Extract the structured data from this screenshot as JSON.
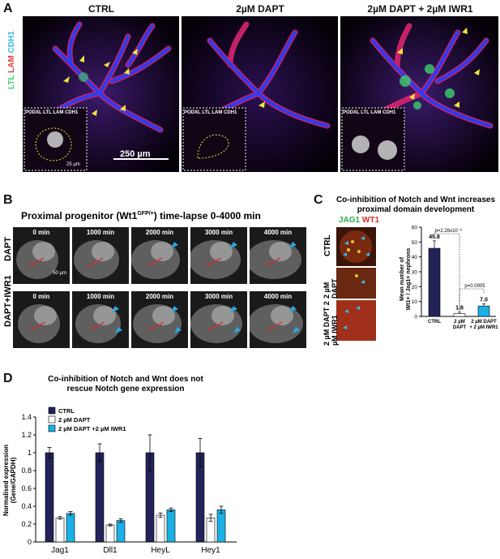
{
  "panel_a": {
    "letter": "A",
    "titles": [
      "CTRL",
      "2µM DAPT",
      "2µM DAPT + 2µM IWR1"
    ],
    "stain_label": {
      "ltl": "LTL",
      "lam": "LAM",
      "cdh1": "CDH1"
    },
    "inset_labels": [
      "PODXL LTL LAM CDH1",
      "PODXL LTL LAM CDH1",
      "PODXL LTL LAM CDH1"
    ],
    "scale_bar": "250 µm",
    "inset_scale": "25 µm",
    "colors": {
      "ltl": "#3bd16f",
      "lam": "#e23b3b",
      "cdh1": "#37b7e6",
      "podxl": "#ffffff"
    }
  },
  "panel_b": {
    "letter": "B",
    "title": "Proximal progenitor (Wt1GFP/+) time-lapse 0-4000 min",
    "title_main": "Proximal progenitor (Wt1",
    "title_sup": "GFP/+",
    "title_end": ") time-lapse 0-4000 min",
    "rows": [
      "DAPT",
      "DAPT+IWR1"
    ],
    "times": [
      "0 min",
      "1000 min",
      "2000 min",
      "3000 min",
      "4000 min"
    ],
    "scale": "50 µm"
  },
  "panel_c": {
    "letter": "C",
    "title_line1": "Co-inhibition of Notch and Wnt increases",
    "title_line2": "proximal domain development",
    "stain_jag1": "JAG1",
    "stain_wt1": "WT1",
    "row_labels": [
      "CTRL",
      "2 µM DAPT",
      "2 µM DAPT 2 µM IWR1"
    ],
    "ylabel_line1": "Mean number of",
    "ylabel_line2": "Wt1+ / Jag1+ nephrons",
    "p1": "p=2.26x10⁻⁶",
    "p2": "p=0.0005"
  },
  "panel_d": {
    "letter": "D",
    "title_line1": "Co-inhibition of Notch and Wnt does not",
    "title_line2": "rescue Notch gene expression"
  },
  "chart_data": [
    {
      "type": "bar",
      "id": "panel-c-chart",
      "categories": [
        "CTRL",
        "2 µM DAPT",
        "2 µM DAPT + 2 µM IWR1"
      ],
      "category_lines": [
        [
          "CTRL"
        ],
        [
          "2 µM",
          "DAPT"
        ],
        [
          "2 µM DAPT",
          "+ 2 µM IWR1"
        ]
      ],
      "values": [
        45.8,
        1.8,
        7.0
      ],
      "value_labels": [
        "45.8",
        "1.8",
        "7.0"
      ],
      "errors": [
        5,
        1.2,
        1.5
      ],
      "colors": [
        "#23235a",
        "#ffffff",
        "#1bb0e6"
      ],
      "ylabel": "Mean number of Wt1+ / Jag1+ nephrons",
      "ylim": [
        0,
        60
      ],
      "yticks": [
        0,
        10,
        20,
        30,
        40,
        50,
        60
      ],
      "annotations": [
        "p=2.26x10⁻⁶",
        "p=0.0005"
      ]
    },
    {
      "type": "bar",
      "id": "panel-d-chart",
      "categories": [
        "Jag1",
        "Dll1",
        "HeyL",
        "Hey1"
      ],
      "series": [
        {
          "name": "CTRL",
          "values": [
            1.0,
            1.0,
            1.0,
            1.0
          ],
          "errors": [
            0.06,
            0.1,
            0.2,
            0.16
          ],
          "color": "#23235a"
        },
        {
          "name": "2 µM DAPT",
          "values": [
            0.27,
            0.19,
            0.3,
            0.27
          ],
          "errors": [
            0.015,
            0.01,
            0.025,
            0.04
          ],
          "color": "#ffffff"
        },
        {
          "name": "2 µM DAPT +2 µM IWR1",
          "values": [
            0.32,
            0.24,
            0.36,
            0.36
          ],
          "errors": [
            0.02,
            0.02,
            0.02,
            0.04
          ],
          "color": "#1bb0e6"
        }
      ],
      "ylabel": "Normalised expression (Gene/GAPDH)",
      "ylabel_line1": "Normalised expression",
      "ylabel_line2": "(Gene/GAPDH)",
      "ylim": [
        0,
        1.4
      ],
      "yticks": [
        "0",
        "0.2",
        "0.4",
        "0.6",
        "0.8",
        "1",
        "1.2",
        "1.4"
      ],
      "legend": "top-left"
    }
  ]
}
